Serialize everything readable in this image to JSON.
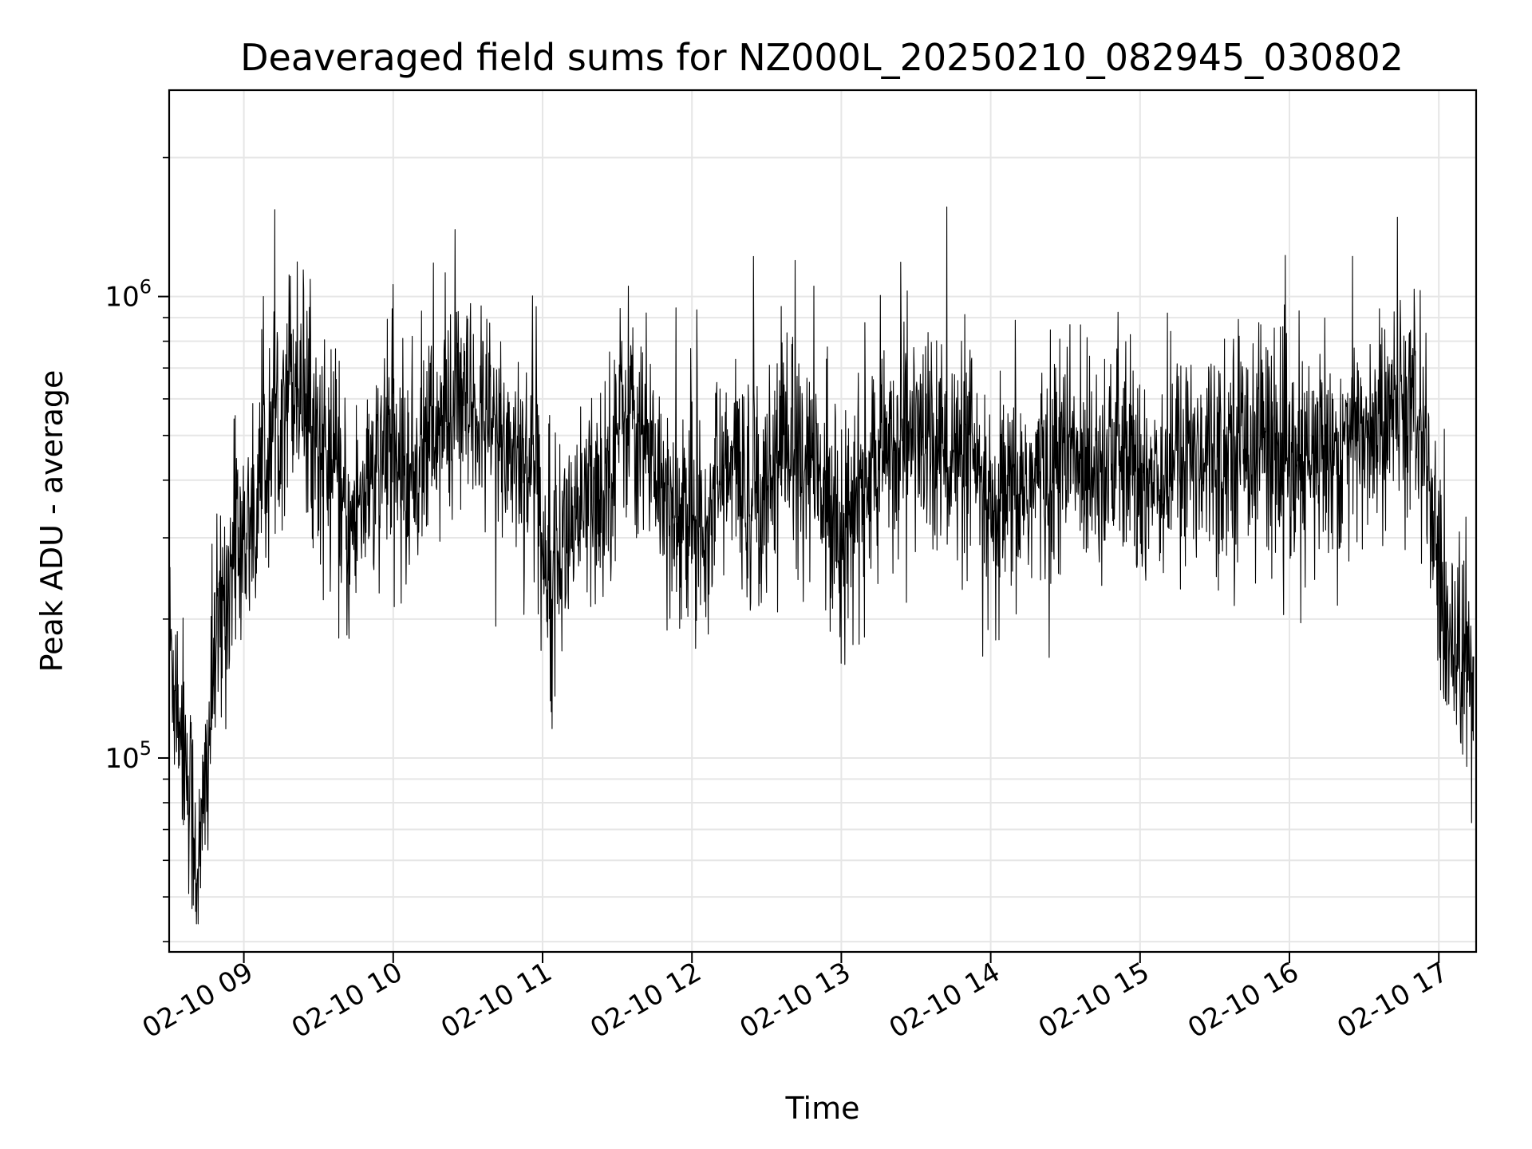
{
  "chart_data": {
    "type": "line",
    "title": "Deaveraged field sums for NZ000L_20250210_082945_030802",
    "xlabel": "Time",
    "ylabel": "Peak ADU - average",
    "yscale": "log",
    "ylim": [
      38000,
      2800000
    ],
    "xlim": [
      "2025-02-10 08:30",
      "2025-02-10 17:15"
    ],
    "grid": true,
    "line_color": "#000000",
    "grid_color": "#e6e6e6",
    "x_ticks": [
      {
        "label": "02-10 09",
        "time": "2025-02-10 09:00"
      },
      {
        "label": "02-10 10",
        "time": "2025-02-10 10:00"
      },
      {
        "label": "02-10 11",
        "time": "2025-02-10 11:00"
      },
      {
        "label": "02-10 12",
        "time": "2025-02-10 12:00"
      },
      {
        "label": "02-10 13",
        "time": "2025-02-10 13:00"
      },
      {
        "label": "02-10 14",
        "time": "2025-02-10 14:00"
      },
      {
        "label": "02-10 15",
        "time": "2025-02-10 15:00"
      },
      {
        "label": "02-10 16",
        "time": "2025-02-10 16:00"
      },
      {
        "label": "02-10 17",
        "time": "2025-02-10 17:00"
      }
    ],
    "y_ticks": [
      {
        "base": "10",
        "exp": "5",
        "value": 100000
      },
      {
        "base": "10",
        "exp": "6",
        "value": 1000000
      }
    ],
    "series": [
      {
        "x": [
          "2025-02-10 08:30",
          "2025-02-10 08:36",
          "2025-02-10 08:42",
          "2025-02-10 08:48",
          "2025-02-10 08:54",
          "2025-02-10 09:00",
          "2025-02-10 09:06",
          "2025-02-10 09:12",
          "2025-02-10 09:18",
          "2025-02-10 09:24",
          "2025-02-10 09:30",
          "2025-02-10 09:36",
          "2025-02-10 09:42",
          "2025-02-10 09:48",
          "2025-02-10 09:54",
          "2025-02-10 10:00",
          "2025-02-10 10:06",
          "2025-02-10 10:12",
          "2025-02-10 10:18",
          "2025-02-10 10:24",
          "2025-02-10 10:30",
          "2025-02-10 10:36",
          "2025-02-10 10:42",
          "2025-02-10 10:48",
          "2025-02-10 10:54",
          "2025-02-10 11:00",
          "2025-02-10 11:06",
          "2025-02-10 11:12",
          "2025-02-10 11:18",
          "2025-02-10 11:24",
          "2025-02-10 11:30",
          "2025-02-10 11:36",
          "2025-02-10 11:42",
          "2025-02-10 11:48",
          "2025-02-10 11:54",
          "2025-02-10 12:00",
          "2025-02-10 12:06",
          "2025-02-10 12:12",
          "2025-02-10 12:18",
          "2025-02-10 12:24",
          "2025-02-10 12:30",
          "2025-02-10 12:36",
          "2025-02-10 12:42",
          "2025-02-10 12:48",
          "2025-02-10 12:54",
          "2025-02-10 13:00",
          "2025-02-10 13:06",
          "2025-02-10 13:12",
          "2025-02-10 13:18",
          "2025-02-10 13:24",
          "2025-02-10 13:30",
          "2025-02-10 13:36",
          "2025-02-10 13:42",
          "2025-02-10 13:48",
          "2025-02-10 13:54",
          "2025-02-10 14:00",
          "2025-02-10 14:06",
          "2025-02-10 14:12",
          "2025-02-10 14:18",
          "2025-02-10 14:24",
          "2025-02-10 14:30",
          "2025-02-10 14:36",
          "2025-02-10 14:42",
          "2025-02-10 14:48",
          "2025-02-10 14:54",
          "2025-02-10 15:00",
          "2025-02-10 15:06",
          "2025-02-10 15:12",
          "2025-02-10 15:18",
          "2025-02-10 15:24",
          "2025-02-10 15:30",
          "2025-02-10 15:36",
          "2025-02-10 15:42",
          "2025-02-10 15:48",
          "2025-02-10 15:54",
          "2025-02-10 16:00",
          "2025-02-10 16:06",
          "2025-02-10 16:12",
          "2025-02-10 16:18",
          "2025-02-10 16:24",
          "2025-02-10 16:30",
          "2025-02-10 16:36",
          "2025-02-10 16:42",
          "2025-02-10 16:48",
          "2025-02-10 16:54",
          "2025-02-10 17:00",
          "2025-02-10 17:06",
          "2025-02-10 17:12"
        ],
        "y": [
          180000,
          110000,
          55000,
          160000,
          250000,
          300000,
          380000,
          520000,
          700000,
          650000,
          480000,
          420000,
          300000,
          380000,
          420000,
          450000,
          400000,
          470000,
          520000,
          550000,
          560000,
          530000,
          500000,
          470000,
          450000,
          300000,
          280000,
          320000,
          350000,
          380000,
          520000,
          600000,
          480000,
          400000,
          350000,
          320000,
          360000,
          400000,
          420000,
          380000,
          400000,
          500000,
          480000,
          420000,
          380000,
          320000,
          350000,
          420000,
          450000,
          520000,
          500000,
          480000,
          460000,
          430000,
          420000,
          300000,
          350000,
          380000,
          400000,
          420000,
          450000,
          430000,
          460000,
          450000,
          440000,
          400000,
          420000,
          430000,
          450000,
          470000,
          480000,
          500000,
          490000,
          520000,
          480000,
          400000,
          420000,
          450000,
          470000,
          480000,
          500000,
          520000,
          540000,
          560000,
          520000,
          220000,
          180000,
          150000
        ]
      }
    ]
  }
}
